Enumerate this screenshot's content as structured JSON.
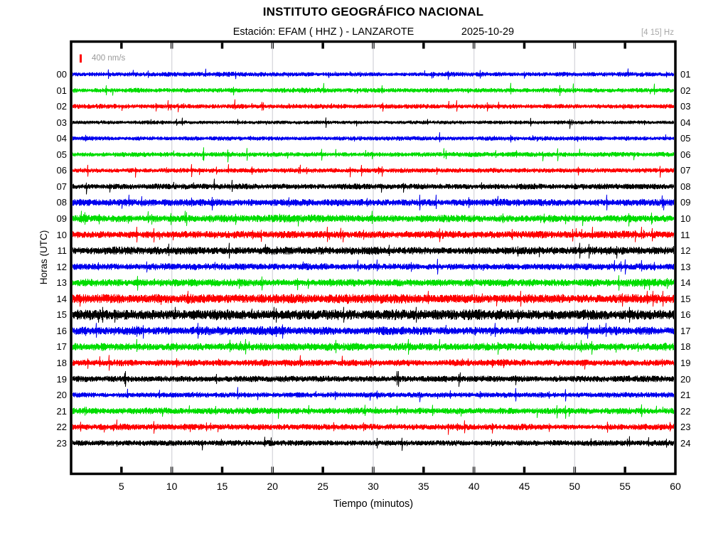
{
  "header": {
    "title": "INSTITUTO GEOGRÁFICO NACIONAL",
    "station_line": "Estación:  EFAM ( HHZ ) - LANZAROTE",
    "date": "2025-10-29",
    "filter_label": "[4 15] Hz"
  },
  "chart_data": {
    "type": "line",
    "variant": "helicorder-daily-seismogram",
    "title": "INSTITUTO GEOGRÁFICO NACIONAL",
    "subtitle": "Estación:  EFAM ( HHZ ) - LANZAROTE   2025-10-29",
    "station": "EFAM",
    "channel": "HHZ",
    "site": "LANZAROTE",
    "date": "2025-10-29",
    "filter_band_hz": "[4 15] Hz",
    "xlabel": "Tiempo (minutos)",
    "ylabel": "Horas (UTC)",
    "x_range": [
      0,
      60
    ],
    "x_ticks": [
      5,
      10,
      15,
      20,
      25,
      30,
      35,
      40,
      45,
      50,
      55,
      60
    ],
    "grid_minutes": [
      10,
      20,
      30,
      40,
      50
    ],
    "grid_on": true,
    "scale_bar": {
      "label": "400 nm/s",
      "color": "#ff0000"
    },
    "trace_color_cycle": [
      "#0000ee",
      "#00dd00",
      "#ff0000",
      "#000000"
    ],
    "rows": [
      {
        "utc_start": "00",
        "utc_end": "01",
        "color": "#0000ee",
        "amplitude": 3.0
      },
      {
        "utc_start": "01",
        "utc_end": "02",
        "color": "#00dd00",
        "amplitude": 3.2
      },
      {
        "utc_start": "02",
        "utc_end": "03",
        "color": "#ff0000",
        "amplitude": 3.2
      },
      {
        "utc_start": "03",
        "utc_end": "04",
        "color": "#000000",
        "amplitude": 2.5
      },
      {
        "utc_start": "04",
        "utc_end": "05",
        "color": "#0000ee",
        "amplitude": 2.9
      },
      {
        "utc_start": "05",
        "utc_end": "06",
        "color": "#00dd00",
        "amplitude": 3.3
      },
      {
        "utc_start": "06",
        "utc_end": "07",
        "color": "#ff0000",
        "amplitude": 3.3
      },
      {
        "utc_start": "07",
        "utc_end": "08",
        "color": "#000000",
        "amplitude": 3.9
      },
      {
        "utc_start": "08",
        "utc_end": "09",
        "color": "#0000ee",
        "amplitude": 4.8
      },
      {
        "utc_start": "09",
        "utc_end": "10",
        "color": "#00dd00",
        "amplitude": 5.0
      },
      {
        "utc_start": "10",
        "utc_end": "11",
        "color": "#ff0000",
        "amplitude": 5.0
      },
      {
        "utc_start": "11",
        "utc_end": "12",
        "color": "#000000",
        "amplitude": 5.2
      },
      {
        "utc_start": "12",
        "utc_end": "13",
        "color": "#0000ee",
        "amplitude": 4.4
      },
      {
        "utc_start": "13",
        "utc_end": "14",
        "color": "#00dd00",
        "amplitude": 5.2
      },
      {
        "utc_start": "14",
        "utc_end": "15",
        "color": "#ff0000",
        "amplitude": 6.4
      },
      {
        "utc_start": "15",
        "utc_end": "16",
        "color": "#000000",
        "amplitude": 6.8
      },
      {
        "utc_start": "16",
        "utc_end": "17",
        "color": "#0000ee",
        "amplitude": 5.5
      },
      {
        "utc_start": "17",
        "utc_end": "18",
        "color": "#00dd00",
        "amplitude": 5.2
      },
      {
        "utc_start": "18",
        "utc_end": "19",
        "color": "#ff0000",
        "amplitude": 4.4
      },
      {
        "utc_start": "19",
        "utc_end": "20",
        "color": "#000000",
        "amplitude": 4.2
      },
      {
        "utc_start": "20",
        "utc_end": "21",
        "color": "#0000ee",
        "amplitude": 3.6
      },
      {
        "utc_start": "21",
        "utc_end": "22",
        "color": "#00dd00",
        "amplitude": 4.4
      },
      {
        "utc_start": "22",
        "utc_end": "23",
        "color": "#ff0000",
        "amplitude": 4.2
      },
      {
        "utc_start": "23",
        "utc_end": "24",
        "color": "#000000",
        "amplitude": 3.9
      }
    ]
  },
  "colors": {
    "frame": "#000000",
    "grid": "#d9d9de",
    "muted_text": "#999999"
  }
}
